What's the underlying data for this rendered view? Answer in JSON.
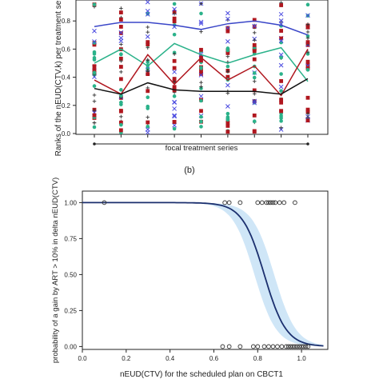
{
  "chart_data": [
    {
      "type": "scatter",
      "panel_label": "",
      "xlabel": "focal treatment series",
      "ylabel": "Ranks of the nEUD(CTV,k) per treatment series",
      "ylim": [
        0,
        1.0
      ],
      "yticks": [
        "0.0",
        "0.2",
        "0.4",
        "0.6",
        "0.8"
      ],
      "n_series": 9,
      "grid": false,
      "colors": {
        "red": "#b0171f",
        "green": "#2bb28a",
        "blue": "#3a46c8",
        "black": "#111111",
        "cross": "#4a4ae0",
        "plus": "#333333"
      },
      "series": [
        {
          "values": [
            0.76,
            0.79,
            0.79,
            0.77,
            0.74,
            0.78,
            0.8,
            0.77,
            0.7
          ]
        },
        {
          "values": [
            0.5,
            0.6,
            0.48,
            0.64,
            0.56,
            0.5,
            0.56,
            0.61,
            0.37
          ]
        },
        {
          "values": [
            0.38,
            0.28,
            0.56,
            0.35,
            0.54,
            0.38,
            0.48,
            0.27,
            0.6
          ]
        },
        {
          "values": [
            0.32,
            0.28,
            0.36,
            0.31,
            0.3,
            0.3,
            0.3,
            0.28,
            0.39
          ]
        }
      ]
    },
    {
      "type": "line",
      "panel_label": "(b)",
      "xlabel": "nEUD(CTV) for the scheduled plan on CBCT1",
      "ylabel": "probability of a gain by ART > 10% in delta nEUD(CTV)",
      "xlim": [
        0,
        1.12
      ],
      "ylim": [
        -0.02,
        1.08
      ],
      "xticks": [
        "0.0",
        "0.2",
        "0.4",
        "0.6",
        "0.8",
        "1.0"
      ],
      "yticks": [
        "0.00",
        "0.25",
        "0.50",
        "0.75",
        "1.00"
      ],
      "grid": false,
      "curve": {
        "midpoint": 0.83,
        "slope": 20,
        "ci_width": 0.045
      },
      "points_top": [
        0.1,
        0.65,
        0.67,
        0.72,
        0.8,
        0.82,
        0.84,
        0.85,
        0.86,
        0.87,
        0.88,
        0.9,
        0.92,
        0.97
      ],
      "points_bottom": [
        0.64,
        0.67,
        0.72,
        0.78,
        0.8,
        0.83,
        0.85,
        0.87,
        0.89,
        0.91,
        0.93,
        0.94,
        0.95,
        0.96,
        0.97,
        0.98,
        0.99,
        1.0,
        1.01,
        1.02,
        1.03
      ],
      "colors": {
        "curve": "#1b2f6e",
        "band": "#cfe6f7",
        "points": "#333333"
      }
    }
  ]
}
